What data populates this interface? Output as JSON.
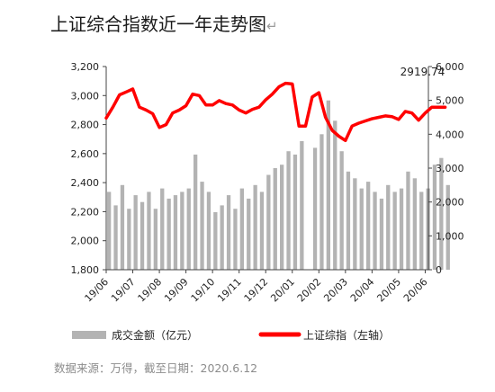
{
  "chart_data": {
    "type": "bar+line",
    "title": "上证综合指数近一年走势图",
    "title_mark": "↵",
    "x_tick_labels": [
      "19/06",
      "19/07",
      "19/08",
      "19/09",
      "19/10",
      "19/11",
      "19/12",
      "20/01",
      "20/02",
      "20/03",
      "20/04",
      "20/05",
      "20/06"
    ],
    "y_left": {
      "range": [
        1800,
        3200
      ],
      "ticks": [
        1800,
        2000,
        2200,
        2400,
        2600,
        2800,
        3000,
        3200
      ],
      "tick_labels": [
        "1,800",
        "2,000",
        "2,200",
        "2,400",
        "2,600",
        "2,800",
        "3,000",
        "3,200"
      ]
    },
    "y_right": {
      "range": [
        0,
        6000
      ],
      "ticks": [
        0,
        1000,
        2000,
        3000,
        4000,
        5000,
        6000
      ],
      "tick_labels": [
        "0",
        "1,000",
        "2,000",
        "3,000",
        "4,000",
        "5,000",
        "6,000"
      ]
    },
    "annotation": {
      "text": "2919.74",
      "month": 12.4,
      "value": 2919.74
    },
    "series": [
      {
        "name": "成交金额（亿元）",
        "type": "bar",
        "axis": "right",
        "color": "#b3b3b3",
        "month_index": [
          0,
          0.25,
          0.5,
          0.75,
          1,
          1.25,
          1.5,
          1.75,
          2,
          2.25,
          2.5,
          2.75,
          3,
          3.25,
          3.5,
          3.75,
          4,
          4.25,
          4.5,
          4.75,
          5,
          5.25,
          5.5,
          5.75,
          6,
          6.25,
          6.5,
          6.75,
          7,
          7.25,
          7.5,
          7.75,
          8,
          8.25,
          8.5,
          8.75,
          9,
          9.25,
          9.5,
          9.75,
          10,
          10.25,
          10.5,
          10.75,
          11,
          11.25,
          11.5,
          11.75,
          12,
          12.25,
          12.5,
          12.75
        ],
        "values": [
          2300,
          1900,
          2500,
          1800,
          2200,
          2000,
          2300,
          1800,
          2400,
          2100,
          2200,
          2300,
          2400,
          3400,
          2600,
          2300,
          1700,
          1900,
          2200,
          1800,
          2400,
          2100,
          2500,
          2300,
          2800,
          3000,
          3100,
          3500,
          3400,
          3800,
          0,
          3600,
          4000,
          5000,
          4400,
          3500,
          2900,
          2700,
          2400,
          2600,
          2300,
          2100,
          2500,
          2300,
          2400,
          2900,
          2700,
          2300,
          2400,
          3100,
          3300,
          2500
        ]
      },
      {
        "name": "上证综指（左轴）",
        "type": "line",
        "axis": "left",
        "color": "#ff0000",
        "month_index": [
          0,
          0.25,
          0.5,
          0.75,
          1,
          1.25,
          1.5,
          1.75,
          2,
          2.25,
          2.5,
          2.75,
          3,
          3.25,
          3.5,
          3.75,
          4,
          4.25,
          4.5,
          4.75,
          5,
          5.25,
          5.5,
          5.75,
          6,
          6.25,
          6.5,
          6.75,
          7,
          7.25,
          7.5,
          7.75,
          8,
          8.25,
          8.5,
          8.75,
          9,
          9.25,
          9.5,
          9.75,
          10,
          10.25,
          10.5,
          10.75,
          11,
          11.25,
          11.5,
          11.75,
          12,
          12.25,
          12.5,
          12.75
        ],
        "values": [
          2845,
          2920,
          3005,
          3025,
          3045,
          2920,
          2900,
          2875,
          2780,
          2800,
          2880,
          2900,
          2930,
          3010,
          3000,
          2935,
          2935,
          2965,
          2945,
          2935,
          2900,
          2880,
          2905,
          2920,
          2970,
          3010,
          3060,
          3085,
          3080,
          2790,
          2790,
          2990,
          3020,
          2850,
          2760,
          2720,
          2690,
          2790,
          2810,
          2825,
          2840,
          2850,
          2860,
          2855,
          2835,
          2890,
          2880,
          2830,
          2880,
          2920,
          2920,
          2919.74
        ]
      }
    ]
  },
  "legend": {
    "bar_label": "成交金额（亿元）",
    "line_label": "上证综指（左轴）"
  },
  "source_note": "数据来源：万得，截至日期：2020.6.12"
}
